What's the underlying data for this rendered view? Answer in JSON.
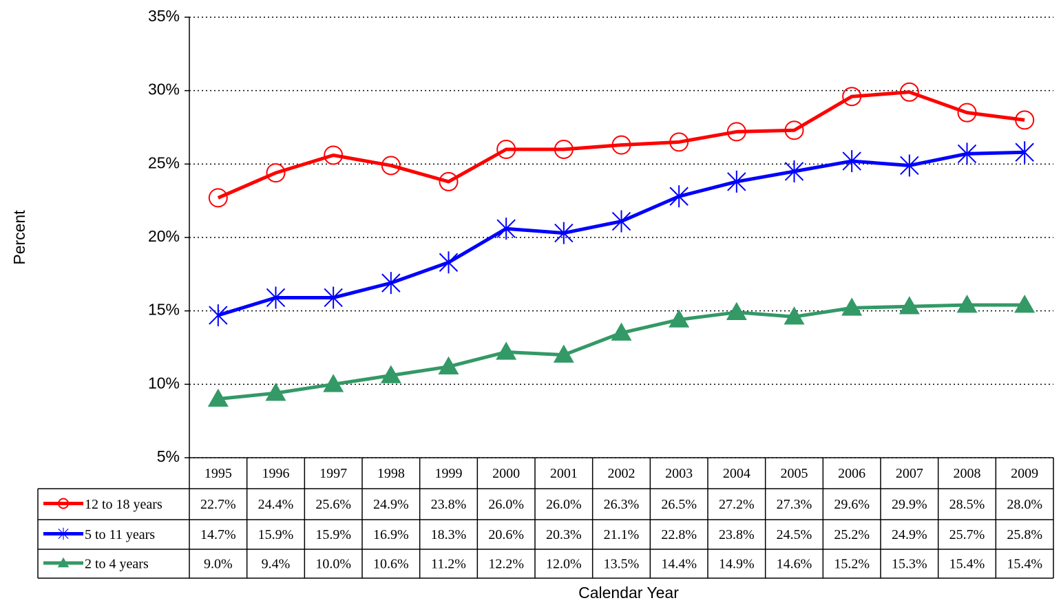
{
  "chart_data": {
    "type": "line",
    "x_label": "Calendar Year",
    "y_label": "Percent",
    "categories": [
      "1995",
      "1996",
      "1997",
      "1998",
      "1999",
      "2000",
      "2001",
      "2002",
      "2003",
      "2004",
      "2005",
      "2006",
      "2007",
      "2008",
      "2009"
    ],
    "ylim": [
      5,
      35
    ],
    "yticks": [
      {
        "value": 5,
        "label": "5%"
      },
      {
        "value": 10,
        "label": "10%"
      },
      {
        "value": 15,
        "label": "15%"
      },
      {
        "value": 20,
        "label": "20%"
      },
      {
        "value": 25,
        "label": "25%"
      },
      {
        "value": 30,
        "label": "30%"
      },
      {
        "value": 35,
        "label": "35%"
      }
    ],
    "grid": true,
    "series": [
      {
        "name": "12 to 18 years",
        "color": "#ff0000",
        "marker": "circle",
        "values": [
          22.7,
          24.4,
          25.6,
          24.9,
          23.8,
          26.0,
          26.0,
          26.3,
          26.5,
          27.2,
          27.3,
          29.6,
          29.9,
          28.5,
          28.0
        ],
        "value_labels": [
          "22.7%",
          "24.4%",
          "25.6%",
          "24.9%",
          "23.8%",
          "26.0%",
          "26.0%",
          "26.3%",
          "26.5%",
          "27.2%",
          "27.3%",
          "29.6%",
          "29.9%",
          "28.5%",
          "28.0%"
        ]
      },
      {
        "name": "5 to 11 years",
        "color": "#0000ff",
        "marker": "asterisk",
        "values": [
          14.7,
          15.9,
          15.9,
          16.9,
          18.3,
          20.6,
          20.3,
          21.1,
          22.8,
          23.8,
          24.5,
          25.2,
          24.9,
          25.7,
          25.8
        ],
        "value_labels": [
          "14.7%",
          "15.9%",
          "15.9%",
          "16.9%",
          "18.3%",
          "20.6%",
          "20.3%",
          "21.1%",
          "22.8%",
          "23.8%",
          "24.5%",
          "25.2%",
          "24.9%",
          "25.7%",
          "25.8%"
        ]
      },
      {
        "name": "2 to 4 years",
        "color": "#339966",
        "marker": "triangle",
        "values": [
          9.0,
          9.4,
          10.0,
          10.6,
          11.2,
          12.2,
          12.0,
          13.5,
          14.4,
          14.9,
          14.6,
          15.2,
          15.3,
          15.4,
          15.4
        ],
        "value_labels": [
          "9.0%",
          "9.4%",
          "10.0%",
          "10.6%",
          "11.2%",
          "12.2%",
          "12.0%",
          "13.5%",
          "14.4%",
          "14.9%",
          "14.6%",
          "15.2%",
          "15.3%",
          "15.4%",
          "15.4%"
        ]
      }
    ]
  }
}
